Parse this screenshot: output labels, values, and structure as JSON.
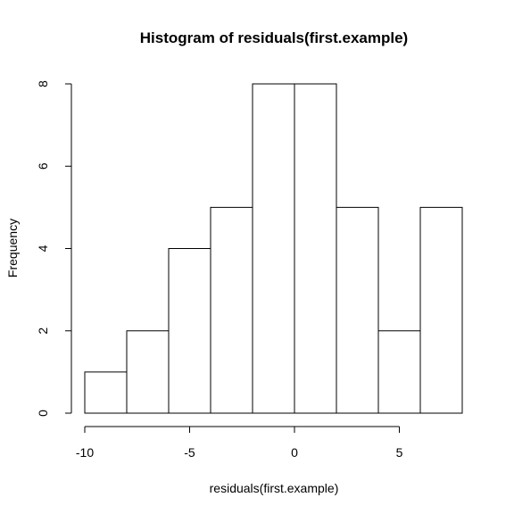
{
  "chart_data": {
    "type": "bar",
    "title": "Histogram of residuals(first.example)",
    "xlabel": "residuals(first.example)",
    "ylabel": "Frequency",
    "bins": [
      {
        "from": -10,
        "to": -8,
        "count": 1
      },
      {
        "from": -8,
        "to": -6,
        "count": 2
      },
      {
        "from": -6,
        "to": -4,
        "count": 4
      },
      {
        "from": -4,
        "to": -2,
        "count": 5
      },
      {
        "from": -2,
        "to": 0,
        "count": 8
      },
      {
        "from": 0,
        "to": 2,
        "count": 8
      },
      {
        "from": 2,
        "to": 4,
        "count": 5
      },
      {
        "from": 4,
        "to": 6,
        "count": 2
      },
      {
        "from": 6,
        "to": 8,
        "count": 5
      }
    ],
    "xlim": [
      -10,
      8
    ],
    "ylim": [
      0,
      8
    ],
    "x_ticks": [
      -10,
      -5,
      0,
      5
    ],
    "y_ticks": [
      0,
      2,
      4,
      6,
      8
    ],
    "grid": false,
    "colors": {
      "bar_fill": "#ffffff",
      "bar_stroke": "#000000"
    }
  }
}
